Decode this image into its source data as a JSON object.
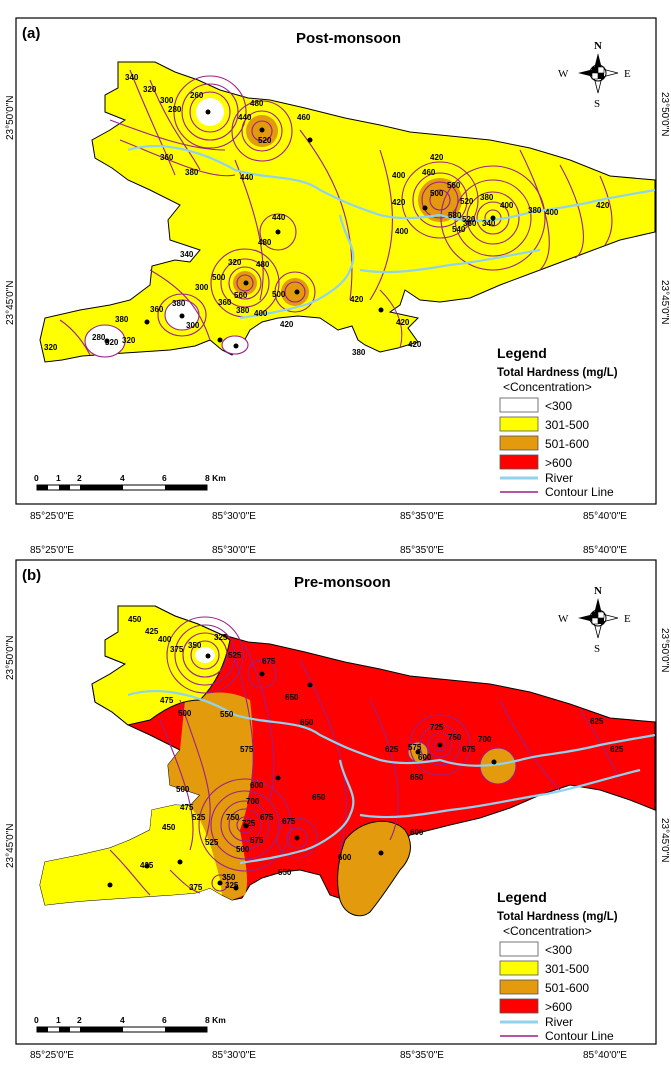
{
  "maps": [
    {
      "panel_label": "(a)",
      "title": "Post-monsoon",
      "top_ticks": [],
      "bottom_ticks": [
        "85°25'0\"E",
        "85°30'0\"E",
        "85°35'0\"E",
        "85°40'0\"E"
      ],
      "left_ticks": [
        "23°50'0\"N",
        "23°45'0\"N"
      ],
      "right_ticks": [
        "23°50'0\"N",
        "23°45'0\"N"
      ],
      "contour_labels": [
        "340",
        "320",
        "300",
        "280",
        "260",
        "440",
        "480",
        "520",
        "460",
        "360",
        "380",
        "440",
        "400",
        "420",
        "460",
        "500",
        "560",
        "520",
        "380",
        "400",
        "420",
        "480",
        "580",
        "540",
        "520",
        "360",
        "340",
        "380",
        "400",
        "420",
        "300",
        "320",
        "400",
        "440",
        "500",
        "560",
        "500",
        "480",
        "340",
        "360",
        "380",
        "400",
        "420",
        "360",
        "380",
        "300",
        "320",
        "280",
        "380",
        "320",
        "420",
        "420",
        "420",
        "380",
        "320"
      ],
      "legend": {
        "title": "Legend",
        "subtitle": "Total Hardness (mg/L)",
        "sub2": "<Concentration>",
        "classes": [
          {
            "label": "<300",
            "color": "#ffffff"
          },
          {
            "label": "301-500",
            "color": "#ffff00"
          },
          {
            "label": "501-600",
            "color": "#e39a0c"
          },
          {
            "label": ">600",
            "color": "#ff0000"
          }
        ],
        "river": "River",
        "contour": "Contour Line"
      },
      "scale_labels": [
        "0",
        "1",
        "2",
        "4",
        "6",
        "8 Km"
      ]
    },
    {
      "panel_label": "(b)",
      "title": "Pre-monsoon",
      "top_ticks": [
        "85°25'0\"E",
        "85°30'0\"E",
        "85°35'0\"E",
        "85°40'0\"E"
      ],
      "bottom_ticks": [
        "85°25'0\"E",
        "85°30'0\"E",
        "85°35'0\"E",
        "85°40'0\"E"
      ],
      "left_ticks": [
        "23°50'0\"N",
        "23°45'0\"N"
      ],
      "right_ticks": [
        "23°50'0\"N",
        "23°45'0\"N"
      ],
      "contour_labels": [
        "450",
        "425",
        "400",
        "375",
        "350",
        "325",
        "525",
        "675",
        "650",
        "475",
        "500",
        "550",
        "575",
        "600",
        "625",
        "575",
        "600",
        "650",
        "725",
        "750",
        "675",
        "700",
        "625",
        "500",
        "525",
        "475",
        "450",
        "700",
        "750",
        "725",
        "675",
        "650",
        "600",
        "550",
        "500",
        "575",
        "425",
        "375",
        "350",
        "325",
        "525",
        "600",
        "625",
        "650",
        "675"
      ],
      "legend": {
        "title": "Legend",
        "subtitle": "Total Hardness (mg/L)",
        "sub2": "<Concentration>",
        "classes": [
          {
            "label": "<300",
            "color": "#ffffff"
          },
          {
            "label": "301-500",
            "color": "#ffff00"
          },
          {
            "label": "501-600",
            "color": "#e39a0c"
          },
          {
            "label": ">600",
            "color": "#ff0000"
          }
        ],
        "river": "River",
        "contour": "Contour Line"
      },
      "scale_labels": [
        "0",
        "1",
        "2",
        "4",
        "6",
        "8 Km"
      ]
    }
  ],
  "compass": {
    "n": "N",
    "s": "S",
    "e": "E",
    "w": "W"
  },
  "colors": {
    "river": "#8fd3ee",
    "contour": "#9b1f8a",
    "frame": "#000000"
  }
}
